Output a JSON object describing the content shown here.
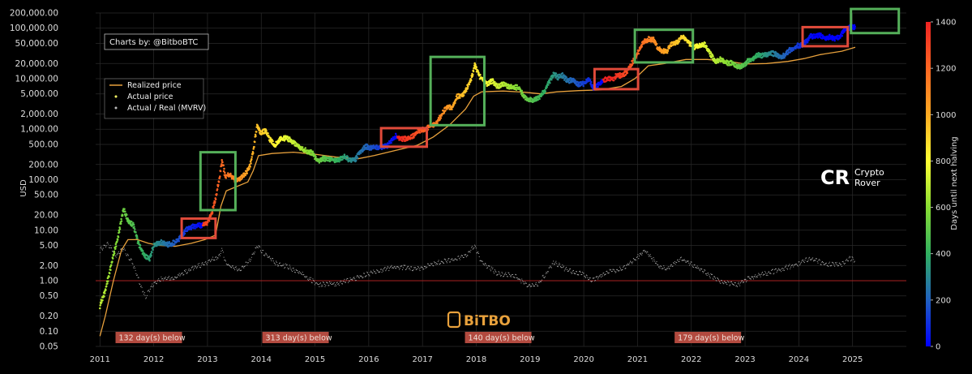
{
  "credit": "Charts by: @BitboBTC",
  "watermarks": {
    "crypto_rover_line1": "Crypto",
    "crypto_rover_line2": "Rover",
    "bitbo": "BiTBO"
  },
  "chart_data": {
    "type": "scatter",
    "ylabel": "USD",
    "y_scale": "log",
    "ylim": [
      0.05,
      200000
    ],
    "xlim": [
      2010.92,
      2026.0
    ],
    "y_ticks": [
      {
        "v": 200000,
        "label": "200,000.00"
      },
      {
        "v": 100000,
        "label": "100,000.00"
      },
      {
        "v": 50000,
        "label": "50,000.00"
      },
      {
        "v": 20000,
        "label": "20,000.00"
      },
      {
        "v": 10000,
        "label": "10,000.00"
      },
      {
        "v": 5000,
        "label": "5,000.00"
      },
      {
        "v": 2000,
        "label": "2,000.00"
      },
      {
        "v": 1000,
        "label": "1,000.00"
      },
      {
        "v": 500,
        "label": "500.00"
      },
      {
        "v": 200,
        "label": "200.00"
      },
      {
        "v": 100,
        "label": "100.00"
      },
      {
        "v": 50,
        "label": "50.00"
      },
      {
        "v": 20,
        "label": "20.00"
      },
      {
        "v": 10,
        "label": "10.00"
      },
      {
        "v": 5,
        "label": "5.00"
      },
      {
        "v": 2,
        "label": "2.00"
      },
      {
        "v": 1,
        "label": "1.00"
      },
      {
        "v": 0.5,
        "label": "0.50"
      },
      {
        "v": 0.2,
        "label": "0.20"
      },
      {
        "v": 0.1,
        "label": "0.10"
      },
      {
        "v": 0.05,
        "label": "0.05"
      }
    ],
    "x_ticks": [
      "2011",
      "2012",
      "2013",
      "2014",
      "2015",
      "2016",
      "2017",
      "2018",
      "2019",
      "2020",
      "2021",
      "2022",
      "2023",
      "2024",
      "2025"
    ],
    "legend": {
      "placement": "top-left",
      "entries": [
        {
          "label": "Realized price",
          "color": "#e8a13c",
          "marker": "line"
        },
        {
          "label": "Actual price",
          "color": "#ffff66",
          "marker": "dot"
        },
        {
          "label": "Actual / Real (MVRV)",
          "color": "#bbbbbb",
          "marker": "dot"
        }
      ]
    },
    "colorbar": {
      "label": "Days until next halving",
      "range": [
        0,
        1400
      ],
      "ticks": [
        "0",
        "200",
        "400",
        "600",
        "800",
        "1000",
        "1200",
        "1400"
      ],
      "colors": [
        "#0000ff",
        "#2060c0",
        "#30b060",
        "#88dd33",
        "#ffff33",
        "#ffaa22",
        "#ff6622",
        "#ee2222"
      ]
    },
    "halvings": [
      2012.91,
      2016.53,
      2020.36,
      2024.3
    ],
    "mvrv_reference": 1,
    "below_one_labels": [
      {
        "x": 2011.35,
        "label": "132 day(s) below"
      },
      {
        "x": 2014.08,
        "label": "313 day(s) below"
      },
      {
        "x": 2017.85,
        "label": "140 day(s) below"
      },
      {
        "x": 2021.75,
        "label": "179 day(s) below"
      }
    ],
    "actual_price": [
      [
        2011.0,
        0.3
      ],
      [
        2011.1,
        0.6
      ],
      [
        2011.25,
        3
      ],
      [
        2011.35,
        8
      ],
      [
        2011.44,
        25
      ],
      [
        2011.52,
        15
      ],
      [
        2011.62,
        12
      ],
      [
        2011.72,
        5
      ],
      [
        2011.83,
        3
      ],
      [
        2011.92,
        2.5
      ],
      [
        2012.0,
        4.7
      ],
      [
        2012.12,
        5.5
      ],
      [
        2012.25,
        4.9
      ],
      [
        2012.35,
        5.2
      ],
      [
        2012.45,
        6
      ],
      [
        2012.55,
        8
      ],
      [
        2012.62,
        10
      ],
      [
        2012.7,
        11
      ],
      [
        2012.8,
        11.5
      ],
      [
        2012.9,
        12
      ],
      [
        2013.0,
        13.5
      ],
      [
        2013.08,
        20
      ],
      [
        2013.15,
        40
      ],
      [
        2013.22,
        100
      ],
      [
        2013.27,
        230
      ],
      [
        2013.33,
        110
      ],
      [
        2013.42,
        120
      ],
      [
        2013.52,
        90
      ],
      [
        2013.62,
        100
      ],
      [
        2013.72,
        130
      ],
      [
        2013.8,
        190
      ],
      [
        2013.86,
        400
      ],
      [
        2013.92,
        1100
      ],
      [
        2013.98,
        800
      ],
      [
        2014.08,
        900
      ],
      [
        2014.16,
        600
      ],
      [
        2014.25,
        450
      ],
      [
        2014.35,
        600
      ],
      [
        2014.45,
        630
      ],
      [
        2014.55,
        580
      ],
      [
        2014.65,
        470
      ],
      [
        2014.75,
        380
      ],
      [
        2014.85,
        350
      ],
      [
        2014.95,
        320
      ],
      [
        2015.05,
        220
      ],
      [
        2015.15,
        250
      ],
      [
        2015.25,
        240
      ],
      [
        2015.35,
        230
      ],
      [
        2015.45,
        240
      ],
      [
        2015.55,
        270
      ],
      [
        2015.65,
        230
      ],
      [
        2015.75,
        240
      ],
      [
        2015.85,
        350
      ],
      [
        2015.95,
        430
      ],
      [
        2016.05,
        400
      ],
      [
        2016.15,
        420
      ],
      [
        2016.25,
        420
      ],
      [
        2016.35,
        450
      ],
      [
        2016.45,
        600
      ],
      [
        2016.5,
        700
      ],
      [
        2016.55,
        650
      ],
      [
        2016.65,
        600
      ],
      [
        2016.75,
        630
      ],
      [
        2016.85,
        730
      ],
      [
        2016.95,
        900
      ],
      [
        2017.05,
        950
      ],
      [
        2017.15,
        1100
      ],
      [
        2017.25,
        1200
      ],
      [
        2017.35,
        1800
      ],
      [
        2017.45,
        2600
      ],
      [
        2017.55,
        2500
      ],
      [
        2017.65,
        4300
      ],
      [
        2017.75,
        4400
      ],
      [
        2017.85,
        7000
      ],
      [
        2017.93,
        11000
      ],
      [
        2017.97,
        18000
      ],
      [
        2018.05,
        11000
      ],
      [
        2018.12,
        9000
      ],
      [
        2018.2,
        7500
      ],
      [
        2018.3,
        8500
      ],
      [
        2018.4,
        6500
      ],
      [
        2018.5,
        7500
      ],
      [
        2018.6,
        6500
      ],
      [
        2018.7,
        6400
      ],
      [
        2018.8,
        6300
      ],
      [
        2018.88,
        4200
      ],
      [
        2018.96,
        3700
      ],
      [
        2019.05,
        3500
      ],
      [
        2019.15,
        3900
      ],
      [
        2019.25,
        5000
      ],
      [
        2019.35,
        8000
      ],
      [
        2019.45,
        12000
      ],
      [
        2019.52,
        10000
      ],
      [
        2019.6,
        11000
      ],
      [
        2019.7,
        8500
      ],
      [
        2019.8,
        9000
      ],
      [
        2019.9,
        7200
      ],
      [
        2020.0,
        7500
      ],
      [
        2020.1,
        9500
      ],
      [
        2020.18,
        6000
      ],
      [
        2020.26,
        7000
      ],
      [
        2020.36,
        9000
      ],
      [
        2020.45,
        9500
      ],
      [
        2020.55,
        9300
      ],
      [
        2020.62,
        11500
      ],
      [
        2020.7,
        10700
      ],
      [
        2020.8,
        13000
      ],
      [
        2020.88,
        18000
      ],
      [
        2020.96,
        25000
      ],
      [
        2021.02,
        33000
      ],
      [
        2021.1,
        48000
      ],
      [
        2021.2,
        58000
      ],
      [
        2021.3,
        56000
      ],
      [
        2021.38,
        37000
      ],
      [
        2021.48,
        33000
      ],
      [
        2021.55,
        33000
      ],
      [
        2021.62,
        46000
      ],
      [
        2021.72,
        48000
      ],
      [
        2021.82,
        63000
      ],
      [
        2021.88,
        60000
      ],
      [
        2021.96,
        47000
      ],
      [
        2022.05,
        40000
      ],
      [
        2022.15,
        42000
      ],
      [
        2022.25,
        45000
      ],
      [
        2022.35,
        30000
      ],
      [
        2022.45,
        20000
      ],
      [
        2022.55,
        23000
      ],
      [
        2022.65,
        19500
      ],
      [
        2022.75,
        19500
      ],
      [
        2022.85,
        16500
      ],
      [
        2022.96,
        16800
      ],
      [
        2023.05,
        21000
      ],
      [
        2023.15,
        24000
      ],
      [
        2023.25,
        28000
      ],
      [
        2023.35,
        27000
      ],
      [
        2023.45,
        30000
      ],
      [
        2023.55,
        29500
      ],
      [
        2023.65,
        26000
      ],
      [
        2023.75,
        27500
      ],
      [
        2023.82,
        34500
      ],
      [
        2023.9,
        37500
      ],
      [
        2023.97,
        43000
      ],
      [
        2024.05,
        43000
      ],
      [
        2024.15,
        52000
      ],
      [
        2024.22,
        67000
      ],
      [
        2024.3,
        64000
      ],
      [
        2024.4,
        68000
      ],
      [
        2024.5,
        60000
      ],
      [
        2024.58,
        64000
      ],
      [
        2024.66,
        58000
      ],
      [
        2024.76,
        63000
      ],
      [
        2024.86,
        90000
      ],
      [
        2024.95,
        97000
      ],
      [
        2025.05,
        100000
      ]
    ],
    "realized_price": [
      [
        2011.0,
        0.08
      ],
      [
        2011.1,
        0.2
      ],
      [
        2011.25,
        1
      ],
      [
        2011.4,
        4
      ],
      [
        2011.52,
        6.5
      ],
      [
        2011.7,
        6.5
      ],
      [
        2011.9,
        5.5
      ],
      [
        2012.1,
        5
      ],
      [
        2012.4,
        4.8
      ],
      [
        2012.7,
        5.5
      ],
      [
        2012.95,
        6.5
      ],
      [
        2013.15,
        8
      ],
      [
        2013.25,
        30
      ],
      [
        2013.35,
        60
      ],
      [
        2013.5,
        70
      ],
      [
        2013.75,
        90
      ],
      [
        2013.85,
        150
      ],
      [
        2013.95,
        300
      ],
      [
        2014.2,
        330
      ],
      [
        2014.6,
        350
      ],
      [
        2015.0,
        320
      ],
      [
        2015.4,
        280
      ],
      [
        2015.8,
        260
      ],
      [
        2016.1,
        300
      ],
      [
        2016.5,
        380
      ],
      [
        2016.9,
        480
      ],
      [
        2017.2,
        700
      ],
      [
        2017.5,
        1200
      ],
      [
        2017.8,
        2500
      ],
      [
        2017.95,
        4500
      ],
      [
        2018.1,
        5500
      ],
      [
        2018.5,
        5700
      ],
      [
        2018.9,
        5400
      ],
      [
        2019.2,
        5000
      ],
      [
        2019.5,
        5500
      ],
      [
        2019.9,
        5800
      ],
      [
        2020.3,
        6000
      ],
      [
        2020.7,
        7000
      ],
      [
        2020.95,
        10000
      ],
      [
        2021.2,
        18000
      ],
      [
        2021.5,
        20000
      ],
      [
        2021.9,
        24000
      ],
      [
        2022.3,
        24000
      ],
      [
        2022.7,
        22000
      ],
      [
        2023.0,
        19500
      ],
      [
        2023.4,
        20000
      ],
      [
        2023.8,
        22000
      ],
      [
        2024.1,
        25000
      ],
      [
        2024.4,
        30000
      ],
      [
        2024.8,
        35000
      ],
      [
        2025.05,
        42000
      ]
    ],
    "mvrv": [
      [
        2011.0,
        3.8
      ],
      [
        2011.15,
        5
      ],
      [
        2011.3,
        3
      ],
      [
        2011.44,
        4
      ],
      [
        2011.6,
        2.2
      ],
      [
        2011.75,
        0.8
      ],
      [
        2011.85,
        0.45
      ],
      [
        2011.95,
        0.7
      ],
      [
        2012.1,
        1.0
      ],
      [
        2012.4,
        1.1
      ],
      [
        2012.7,
        1.6
      ],
      [
        2013.0,
        2.2
      ],
      [
        2013.2,
        2.8
      ],
      [
        2013.27,
        4
      ],
      [
        2013.35,
        2
      ],
      [
        2013.6,
        1.5
      ],
      [
        2013.8,
        2.5
      ],
      [
        2013.92,
        4.5
      ],
      [
        2014.1,
        3
      ],
      [
        2014.3,
        2
      ],
      [
        2014.5,
        1.8
      ],
      [
        2014.8,
        1.2
      ],
      [
        2015.05,
        0.8
      ],
      [
        2015.4,
        0.82
      ],
      [
        2015.8,
        1.1
      ],
      [
        2016.1,
        1.4
      ],
      [
        2016.5,
        1.8
      ],
      [
        2016.9,
        1.6
      ],
      [
        2017.3,
        2.2
      ],
      [
        2017.6,
        2.5
      ],
      [
        2017.8,
        3
      ],
      [
        2017.97,
        4.5
      ],
      [
        2018.1,
        2.2
      ],
      [
        2018.4,
        1.3
      ],
      [
        2018.7,
        1.2
      ],
      [
        2018.96,
        0.75
      ],
      [
        2019.15,
        0.8
      ],
      [
        2019.45,
        2.2
      ],
      [
        2019.7,
        1.5
      ],
      [
        2019.95,
        1.3
      ],
      [
        2020.18,
        0.95
      ],
      [
        2020.4,
        1.4
      ],
      [
        2020.7,
        1.6
      ],
      [
        2020.95,
        2.5
      ],
      [
        2021.15,
        3.8
      ],
      [
        2021.4,
        1.8
      ],
      [
        2021.55,
        1.6
      ],
      [
        2021.8,
        2.6
      ],
      [
        2022.0,
        2
      ],
      [
        2022.3,
        1.3
      ],
      [
        2022.5,
        0.95
      ],
      [
        2022.85,
        0.78
      ],
      [
        2023.1,
        1.1
      ],
      [
        2023.5,
        1.4
      ],
      [
        2023.9,
        1.9
      ],
      [
        2024.22,
        2.6
      ],
      [
        2024.5,
        2.0
      ],
      [
        2024.8,
        2.0
      ],
      [
        2024.95,
        2.6
      ],
      [
        2025.05,
        2.4
      ]
    ],
    "boxes": {
      "green": [
        {
          "x0": 2012.87,
          "x1": 2013.52,
          "y0": 25,
          "y1": 350
        },
        {
          "x0": 2017.15,
          "x1": 2018.15,
          "y0": 1200,
          "y1": 27000
        },
        {
          "x0": 2020.95,
          "x1": 2022.03,
          "y0": 21000,
          "y1": 93000
        },
        {
          "x0": 2024.97,
          "x1": 2025.86,
          "y0": 80000,
          "y1": 240000
        }
      ],
      "red": [
        {
          "x0": 2012.52,
          "x1": 2013.15,
          "y0": 7,
          "y1": 17
        },
        {
          "x0": 2016.23,
          "x1": 2017.08,
          "y0": 450,
          "y1": 1050
        },
        {
          "x0": 2020.2,
          "x1": 2021.01,
          "y0": 6200,
          "y1": 15500
        },
        {
          "x0": 2024.07,
          "x1": 2024.91,
          "y0": 44000,
          "y1": 105000
        }
      ]
    }
  }
}
